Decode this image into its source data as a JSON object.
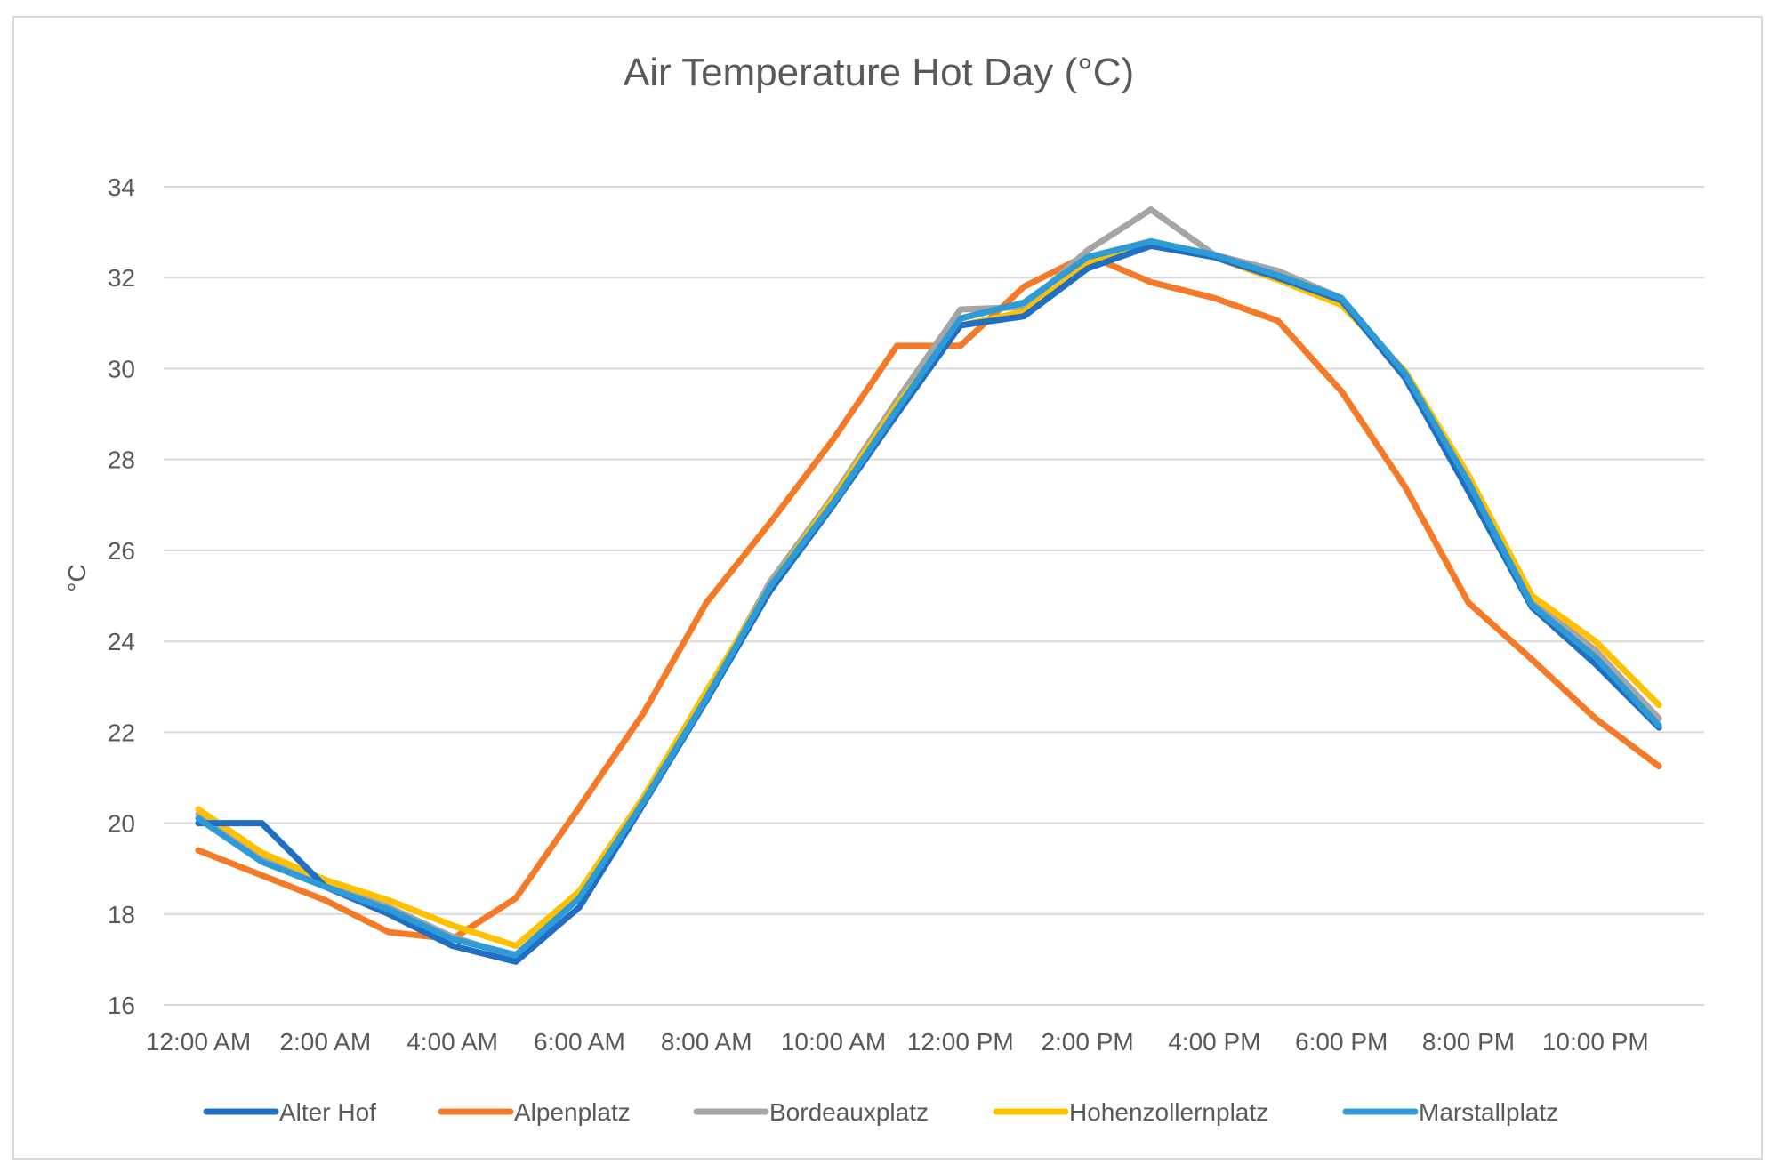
{
  "chart_data": {
    "type": "line",
    "title": "Air Temperature  Hot Day (°C)",
    "xlabel": "",
    "ylabel": "°C",
    "ylim": [
      16,
      34
    ],
    "yticks": [
      16,
      18,
      20,
      22,
      24,
      26,
      28,
      30,
      32,
      34
    ],
    "grid": true,
    "legend_position": "bottom",
    "categories": [
      "12:00 AM",
      "1:00 AM",
      "2:00 AM",
      "3:00 AM",
      "4:00 AM",
      "5:00 AM",
      "6:00 AM",
      "7:00 AM",
      "8:00 AM",
      "9:00 AM",
      "10:00 AM",
      "11:00 AM",
      "12:00 PM",
      "1:00 PM",
      "2:00 PM",
      "3:00 PM",
      "4:00 PM",
      "5:00 PM",
      "6:00 PM",
      "7:00 PM",
      "8:00 PM",
      "9:00 PM",
      "10:00 PM",
      "11:00 PM"
    ],
    "x_tick_labels": [
      "12:00 AM",
      "2:00 AM",
      "4:00 AM",
      "6:00 AM",
      "8:00 AM",
      "10:00 AM",
      "12:00 PM",
      "2:00 PM",
      "4:00 PM",
      "6:00 PM",
      "8:00 PM",
      "10:00 PM"
    ],
    "series": [
      {
        "name": "Alter Hof",
        "color": "#1f6fc4",
        "values": [
          20.0,
          20.0,
          18.6,
          18.0,
          17.3,
          16.95,
          18.15,
          20.4,
          22.7,
          25.1,
          27.0,
          29.0,
          30.95,
          31.15,
          32.2,
          32.7,
          32.45,
          32.0,
          31.5,
          29.8,
          27.3,
          24.75,
          23.5,
          22.1
        ]
      },
      {
        "name": "Alpenplatz",
        "color": "#f47a27",
        "values": [
          19.4,
          18.85,
          18.3,
          17.6,
          17.45,
          18.35,
          20.35,
          22.4,
          24.85,
          26.6,
          28.45,
          30.5,
          30.5,
          31.8,
          32.5,
          31.9,
          31.55,
          31.05,
          29.5,
          27.4,
          24.85,
          23.6,
          22.3,
          21.25
        ]
      },
      {
        "name": "Bordeauxplatz",
        "color": "#a5a5a5",
        "values": [
          20.2,
          19.2,
          18.65,
          18.15,
          17.5,
          17.05,
          18.4,
          20.5,
          22.8,
          25.3,
          27.2,
          29.3,
          31.3,
          31.35,
          32.6,
          33.5,
          32.5,
          32.15,
          31.55,
          29.85,
          27.5,
          24.9,
          23.8,
          22.3
        ]
      },
      {
        "name": "Hohenzollernplatz",
        "color": "#ffc000",
        "values": [
          20.3,
          19.35,
          18.75,
          18.3,
          17.75,
          17.3,
          18.5,
          20.55,
          22.9,
          25.2,
          27.15,
          29.2,
          30.95,
          31.25,
          32.3,
          32.75,
          32.45,
          31.95,
          31.4,
          29.95,
          27.65,
          25.0,
          24.0,
          22.6
        ]
      },
      {
        "name": "Marstallplatz",
        "color": "#2e9ad6",
        "values": [
          20.1,
          19.15,
          18.6,
          18.1,
          17.45,
          17.1,
          18.35,
          20.45,
          22.75,
          25.2,
          27.05,
          29.1,
          31.1,
          31.45,
          32.45,
          32.8,
          32.5,
          32.05,
          31.55,
          29.9,
          27.5,
          24.8,
          23.65,
          22.15
        ]
      }
    ]
  }
}
